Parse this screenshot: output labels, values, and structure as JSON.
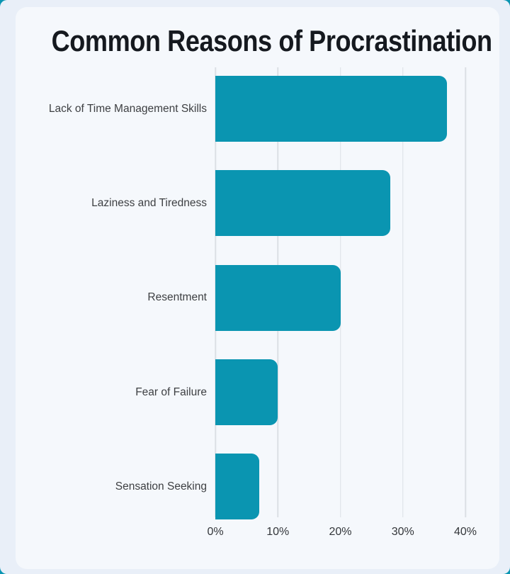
{
  "chart": {
    "title": "Common Reasons of Procrastination"
  },
  "chart_data": {
    "type": "bar",
    "orientation": "horizontal",
    "title": "Common Reasons of Procrastination",
    "categories": [
      "Lack of Time Management Skills",
      "Laziness and Tiredness",
      "Resentment",
      "Fear of Failure",
      "Sensation Seeking"
    ],
    "values": [
      37,
      28,
      20,
      10,
      7
    ],
    "unit": "%",
    "xlabel": "",
    "ylabel": "",
    "xlim": [
      0,
      40
    ],
    "x_ticks": [
      {
        "value": 0,
        "label": "0%"
      },
      {
        "value": 10,
        "label": "10%"
      },
      {
        "value": 20,
        "label": "20%"
      },
      {
        "value": 30,
        "label": "30%"
      },
      {
        "value": 40,
        "label": "40%"
      }
    ],
    "grid": "vertical-only",
    "legend": "none"
  },
  "colors": {
    "bar": "#0a95b1",
    "outer_background": "#0a95b2",
    "page_background": "#e9eff8",
    "card_background": "#f5f8fc",
    "gridline": "#dcdfe5",
    "title_text": "#15191f",
    "label_text": "#3d3f42",
    "tick_text": "#33363a"
  }
}
